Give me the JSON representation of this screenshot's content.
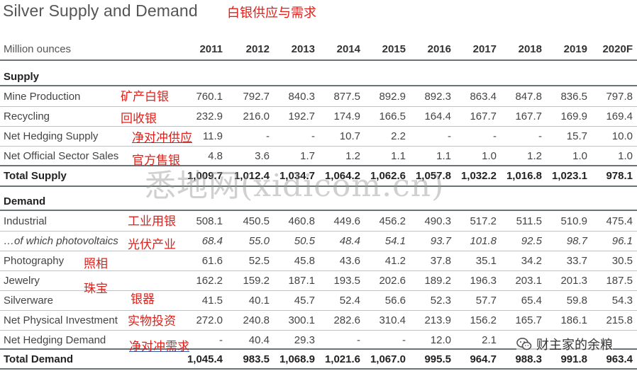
{
  "title": "Silver Supply and Demand",
  "title_cn": "白银供应与需求",
  "unit_label": "Million ounces",
  "years": [
    "2011",
    "2012",
    "2013",
    "2014",
    "2015",
    "2016",
    "2017",
    "2018",
    "2019",
    "2020F"
  ],
  "supply": {
    "heading": "Supply",
    "rows": [
      {
        "label": "Mine Production",
        "values": [
          "760.1",
          "792.7",
          "840.3",
          "877.5",
          "892.9",
          "892.3",
          "863.4",
          "847.8",
          "836.5",
          "797.8"
        ]
      },
      {
        "label": "Recycling",
        "values": [
          "232.9",
          "216.0",
          "192.7",
          "174.9",
          "166.5",
          "164.4",
          "167.7",
          "167.7",
          "169.9",
          "169.4"
        ]
      },
      {
        "label": "Net Hedging Supply",
        "values": [
          "11.9",
          "-",
          "-",
          "10.7",
          "2.2",
          "-",
          "-",
          "-",
          "15.7",
          "10.0"
        ]
      },
      {
        "label": "Net Official Sector Sales",
        "values": [
          "4.8",
          "3.6",
          "1.7",
          "1.2",
          "1.1",
          "1.1",
          "1.0",
          "1.2",
          "1.0",
          "1.0"
        ]
      }
    ],
    "total": {
      "label": "Total Supply",
      "values": [
        "1,009.7",
        "1,012.4",
        "1,034.7",
        "1,064.2",
        "1,062.6",
        "1,057.8",
        "1,032.2",
        "1,016.8",
        "1,023.1",
        "978.1"
      ]
    }
  },
  "demand": {
    "heading": "Demand",
    "rows": [
      {
        "label": "Industrial",
        "values": [
          "508.1",
          "450.5",
          "460.8",
          "449.6",
          "456.2",
          "490.3",
          "517.2",
          "511.5",
          "510.9",
          "475.4"
        ]
      },
      {
        "label": "…of which photovoltaics",
        "values": [
          "68.4",
          "55.0",
          "50.5",
          "48.4",
          "54.1",
          "93.7",
          "101.8",
          "92.5",
          "98.7",
          "96.1"
        ]
      },
      {
        "label": "Photography",
        "values": [
          "61.6",
          "52.5",
          "45.8",
          "43.6",
          "41.2",
          "37.8",
          "35.1",
          "34.2",
          "33.7",
          "30.5"
        ]
      },
      {
        "label": "Jewelry",
        "values": [
          "162.2",
          "159.2",
          "187.1",
          "193.5",
          "202.6",
          "189.2",
          "196.3",
          "203.1",
          "201.3",
          "187.5"
        ]
      },
      {
        "label": "Silverware",
        "values": [
          "41.5",
          "40.1",
          "45.7",
          "52.4",
          "56.6",
          "52.3",
          "57.7",
          "65.4",
          "59.8",
          "54.3"
        ]
      },
      {
        "label": "Net Physical Investment",
        "values": [
          "272.0",
          "240.8",
          "300.1",
          "282.6",
          "310.4",
          "213.9",
          "156.2",
          "165.7",
          "186.1",
          "215.8"
        ]
      },
      {
        "label": "Net Hedging Demand",
        "values": [
          "-",
          "40.4",
          "29.3",
          "-",
          "-",
          "12.0",
          "2.1",
          "",
          "",
          ""
        ]
      }
    ],
    "total": {
      "label": "Total Demand",
      "values": [
        "1,045.4",
        "983.5",
        "1,068.9",
        "1,021.6",
        "1,067.0",
        "995.5",
        "964.7",
        "988.3",
        "991.8",
        "963.4"
      ]
    }
  },
  "annotations": [
    "矿产白银",
    "回收银",
    "净对冲供应",
    "官方售银",
    "工业用银",
    "光伏产业",
    "照相",
    "珠宝",
    "银器",
    "实物投资",
    "净对冲需求"
  ],
  "watermark": "悉地网(xidicom.cn)",
  "wechat_label": "财主家的余粮",
  "colors": {
    "annotation": "#e0201a",
    "rule": "#6b7377",
    "underline": "#2a55b0"
  }
}
